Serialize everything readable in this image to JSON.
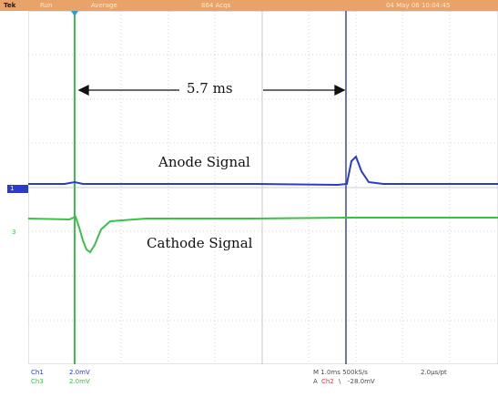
{
  "header": {
    "brand": "Tek",
    "mode": "Run",
    "acq_mode": "Average",
    "acq_count": "864 Acqs",
    "datetime": "04 May 06 10:04:45"
  },
  "annotations": {
    "interval": "5.7 ms",
    "anode": "Anode Signal",
    "cathode": "Cathode Signal"
  },
  "channels": [
    {
      "name": "Ch1",
      "scale": "2.0mV",
      "color": "#2a3cc8"
    },
    {
      "name": "Ch3",
      "scale": "2.0mV",
      "color": "#3dc04b"
    }
  ],
  "channel_markers": {
    "ch1": "1",
    "ch3": "3"
  },
  "status": {
    "timebase": "M 1.0ms 500kS/s",
    "resolution": "2.0µs/pt",
    "trigger_prefix": "A",
    "trigger_source": "Ch2",
    "trigger_slope": "\\",
    "trigger_level": "-28.0mV"
  },
  "colors": {
    "grid": "#c9c9c9",
    "ch1": "#2a3cc8",
    "ch3": "#3dc04b",
    "trigger": "#e04040",
    "cursor_a": "#3dc04b",
    "cursor_b": "#3a46b0"
  }
}
